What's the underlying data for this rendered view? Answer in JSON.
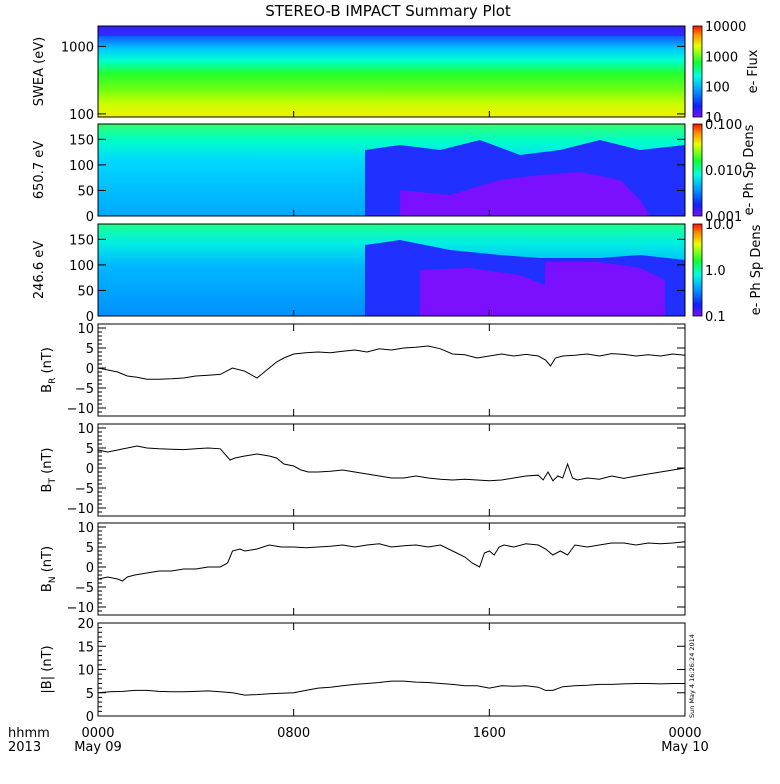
{
  "title": "STEREO-B IMPACT Summary Plot",
  "footer": {
    "corner_line1": "hhmm",
    "corner_line2": "2013",
    "stamp": "Sun May  4 16:26:24 2014"
  },
  "x_axis": {
    "range_hours": [
      0,
      24
    ],
    "ticks": [
      {
        "hour": 0,
        "line1": "0000",
        "line2": "May 09"
      },
      {
        "hour": 8,
        "line1": "0800",
        "line2": ""
      },
      {
        "hour": 16,
        "line1": "1600",
        "line2": ""
      },
      {
        "hour": 24,
        "line1": "0000",
        "line2": "May 10"
      }
    ]
  },
  "spectrograms": [
    {
      "id": "swea",
      "ylabel": "SWEA (eV)",
      "yscale": "log",
      "yrange": [
        90,
        2000
      ],
      "yticks": [
        {
          "v": 100,
          "label": "100"
        },
        {
          "v": 1000,
          "label": "1000"
        }
      ],
      "colorbar": {
        "label": "e- Flux",
        "scale": "log",
        "ticks": [
          "10000",
          "1000",
          "100",
          "10"
        ]
      }
    },
    {
      "id": "pad650",
      "ylabel": "650.7 eV",
      "yscale": "linear",
      "yrange": [
        0,
        180
      ],
      "yticks": [
        {
          "v": 0,
          "label": "0"
        },
        {
          "v": 50,
          "label": "50"
        },
        {
          "v": 100,
          "label": "100"
        },
        {
          "v": 150,
          "label": "150"
        }
      ],
      "colorbar": {
        "label": "e- Ph Sp Dens",
        "scale": "log",
        "ticks": [
          "0.100",
          "0.010",
          "0.001"
        ]
      }
    },
    {
      "id": "pad246",
      "ylabel": "246.6 eV",
      "yscale": "linear",
      "yrange": [
        0,
        180
      ],
      "yticks": [
        {
          "v": 0,
          "label": "0"
        },
        {
          "v": 50,
          "label": "50"
        },
        {
          "v": 100,
          "label": "100"
        },
        {
          "v": 150,
          "label": "150"
        }
      ],
      "colorbar": {
        "label": "e- Ph Sp Dens",
        "scale": "log",
        "ticks": [
          "10.0",
          "1.0",
          "0.1"
        ]
      }
    }
  ],
  "chart_data": [
    {
      "type": "line",
      "id": "br",
      "ylabel": "B",
      "ylabel_sub": "R",
      "ylabel_unit": " (nT)",
      "ylim": [
        -12,
        11
      ],
      "yticks": [
        {
          "v": -10,
          "label": "−10"
        },
        {
          "v": -5,
          "label": "−5"
        },
        {
          "v": 0,
          "label": "0"
        },
        {
          "v": 5,
          "label": "5"
        },
        {
          "v": 10,
          "label": "10"
        }
      ],
      "x": [
        0,
        0.4,
        0.8,
        1.2,
        1.6,
        2.0,
        2.5,
        3.0,
        3.5,
        4.0,
        4.5,
        5.0,
        5.5,
        6.0,
        6.5,
        6.7,
        6.9,
        7.1,
        7.3,
        7.6,
        8.0,
        8.5,
        9.0,
        9.5,
        10.0,
        10.5,
        11.0,
        11.5,
        12.0,
        12.5,
        13.0,
        13.5,
        14.0,
        14.5,
        15.0,
        15.5,
        16.0,
        16.5,
        17.0,
        17.5,
        18.0,
        18.3,
        18.5,
        18.7,
        19.0,
        19.5,
        20.0,
        20.5,
        21.0,
        21.5,
        22.0,
        22.5,
        23.0,
        23.5,
        24.0
      ],
      "y": [
        0,
        -0.5,
        -1.0,
        -2.0,
        -2.3,
        -2.8,
        -2.8,
        -2.7,
        -2.5,
        -2.0,
        -1.8,
        -1.6,
        0.0,
        -0.8,
        -2.5,
        -1.5,
        -0.5,
        0.5,
        1.5,
        2.5,
        3.5,
        3.8,
        4.0,
        3.8,
        4.2,
        4.5,
        4.0,
        4.8,
        4.5,
        5.0,
        5.2,
        5.5,
        4.8,
        3.5,
        3.3,
        2.5,
        3.0,
        3.5,
        3.0,
        3.4,
        3.0,
        2.0,
        0.5,
        2.5,
        3.0,
        3.2,
        3.5,
        3.0,
        3.6,
        3.4,
        3.0,
        3.3,
        3.0,
        3.5,
        3.2
      ]
    },
    {
      "type": "line",
      "id": "bt",
      "ylabel": "B",
      "ylabel_sub": "T",
      "ylabel_unit": " (nT)",
      "ylim": [
        -12,
        11
      ],
      "yticks": [
        {
          "v": -10,
          "label": "−10"
        },
        {
          "v": -5,
          "label": "−5"
        },
        {
          "v": 0,
          "label": "0"
        },
        {
          "v": 5,
          "label": "5"
        },
        {
          "v": 10,
          "label": "10"
        }
      ],
      "x": [
        0,
        0.4,
        0.8,
        1.2,
        1.6,
        2.0,
        2.5,
        3.0,
        3.5,
        4.0,
        4.5,
        5.0,
        5.4,
        5.6,
        6.0,
        6.5,
        7.0,
        7.3,
        7.6,
        8.0,
        8.3,
        8.6,
        9.0,
        9.5,
        10.0,
        10.5,
        11.0,
        11.5,
        12.0,
        12.5,
        13.0,
        13.5,
        14.0,
        14.5,
        15.0,
        15.5,
        16.0,
        16.5,
        17.0,
        17.5,
        18.0,
        18.2,
        18.4,
        18.6,
        18.8,
        19.0,
        19.2,
        19.4,
        19.6,
        20.0,
        20.5,
        21.0,
        21.5,
        22.0,
        22.5,
        23.0,
        23.5,
        24.0
      ],
      "y": [
        4.5,
        4.0,
        4.5,
        5.0,
        5.5,
        5.0,
        4.8,
        4.7,
        4.6,
        4.8,
        5.0,
        4.8,
        2.0,
        2.5,
        3.0,
        3.5,
        3.0,
        2.5,
        1.0,
        0.5,
        -0.5,
        -1.0,
        -1.0,
        -0.8,
        -0.5,
        -1.0,
        -1.5,
        -2.0,
        -2.5,
        -2.5,
        -2.0,
        -2.5,
        -2.8,
        -3.0,
        -2.8,
        -3.0,
        -3.2,
        -3.0,
        -2.5,
        -2.0,
        -1.8,
        -3.0,
        -1.0,
        -3.2,
        -2.0,
        -2.5,
        1.0,
        -2.5,
        -3.0,
        -2.5,
        -2.8,
        -2.0,
        -2.6,
        -2.0,
        -1.5,
        -1.0,
        -0.5,
        0.0
      ]
    },
    {
      "type": "line",
      "id": "bn",
      "ylabel": "B",
      "ylabel_sub": "N",
      "ylabel_unit": " (nT)",
      "ylim": [
        -12,
        11
      ],
      "yticks": [
        {
          "v": -10,
          "label": "−10"
        },
        {
          "v": -5,
          "label": "−5"
        },
        {
          "v": 0,
          "label": "0"
        },
        {
          "v": 5,
          "label": "5"
        },
        {
          "v": 10,
          "label": "10"
        }
      ],
      "x": [
        0,
        0.4,
        0.8,
        1.0,
        1.2,
        1.5,
        2.0,
        2.5,
        3.0,
        3.5,
        4.0,
        4.5,
        5.0,
        5.3,
        5.5,
        5.8,
        6.0,
        6.5,
        7.0,
        7.5,
        8.0,
        8.5,
        9.0,
        9.5,
        10.0,
        10.5,
        11.0,
        11.5,
        12.0,
        12.5,
        13.0,
        13.5,
        14.0,
        14.5,
        15.0,
        15.3,
        15.6,
        15.8,
        16.0,
        16.2,
        16.4,
        16.6,
        17.0,
        17.5,
        18.0,
        18.3,
        18.6,
        18.9,
        19.2,
        19.5,
        20.0,
        20.5,
        21.0,
        21.5,
        22.0,
        22.5,
        23.0,
        23.5,
        24.0
      ],
      "y": [
        -3.0,
        -2.5,
        -3.0,
        -3.5,
        -2.5,
        -2.0,
        -1.5,
        -1.0,
        -1.0,
        -0.5,
        -0.5,
        0.0,
        0.0,
        1.0,
        4.0,
        4.5,
        4.0,
        4.5,
        5.5,
        5.0,
        5.0,
        4.8,
        5.0,
        5.2,
        5.5,
        5.0,
        5.5,
        5.8,
        5.0,
        5.3,
        5.5,
        5.0,
        5.5,
        4.0,
        2.5,
        1.0,
        0.0,
        3.5,
        4.0,
        3.0,
        5.0,
        5.5,
        5.0,
        5.8,
        5.5,
        4.5,
        3.0,
        4.0,
        3.0,
        5.5,
        5.0,
        5.5,
        6.0,
        6.0,
        5.5,
        6.0,
        5.8,
        6.0,
        6.3
      ]
    },
    {
      "type": "line",
      "id": "bmag",
      "ylabel": "|B|",
      "ylabel_sub": "",
      "ylabel_unit": " (nT)",
      "ylim": [
        0,
        20
      ],
      "yticks": [
        {
          "v": 0,
          "label": "0"
        },
        {
          "v": 5,
          "label": "5"
        },
        {
          "v": 10,
          "label": "10"
        },
        {
          "v": 15,
          "label": "15"
        },
        {
          "v": 20,
          "label": "20"
        }
      ],
      "x": [
        0,
        0.5,
        1.0,
        1.5,
        2.0,
        2.5,
        3.0,
        3.5,
        4.0,
        4.5,
        5.0,
        5.5,
        6.0,
        6.5,
        7.0,
        7.5,
        8.0,
        8.5,
        9.0,
        9.5,
        10.0,
        10.5,
        11.0,
        11.5,
        12.0,
        12.5,
        13.0,
        13.5,
        14.0,
        14.5,
        15.0,
        15.5,
        16.0,
        16.5,
        17.0,
        17.5,
        18.0,
        18.3,
        18.6,
        19.0,
        19.5,
        20.0,
        20.5,
        21.0,
        21.5,
        22.0,
        22.5,
        23.0,
        23.5,
        24.0
      ],
      "y": [
        5.0,
        5.2,
        5.3,
        5.5,
        5.5,
        5.3,
        5.2,
        5.2,
        5.3,
        5.4,
        5.2,
        5.0,
        4.5,
        4.6,
        4.8,
        4.9,
        5.0,
        5.5,
        6.0,
        6.2,
        6.5,
        6.8,
        7.0,
        7.2,
        7.5,
        7.5,
        7.3,
        7.2,
        7.0,
        6.8,
        6.5,
        6.5,
        6.0,
        6.5,
        6.4,
        6.5,
        6.2,
        5.5,
        5.5,
        6.3,
        6.5,
        6.6,
        6.8,
        6.8,
        6.9,
        7.0,
        7.0,
        6.9,
        7.0,
        7.0
      ]
    }
  ]
}
